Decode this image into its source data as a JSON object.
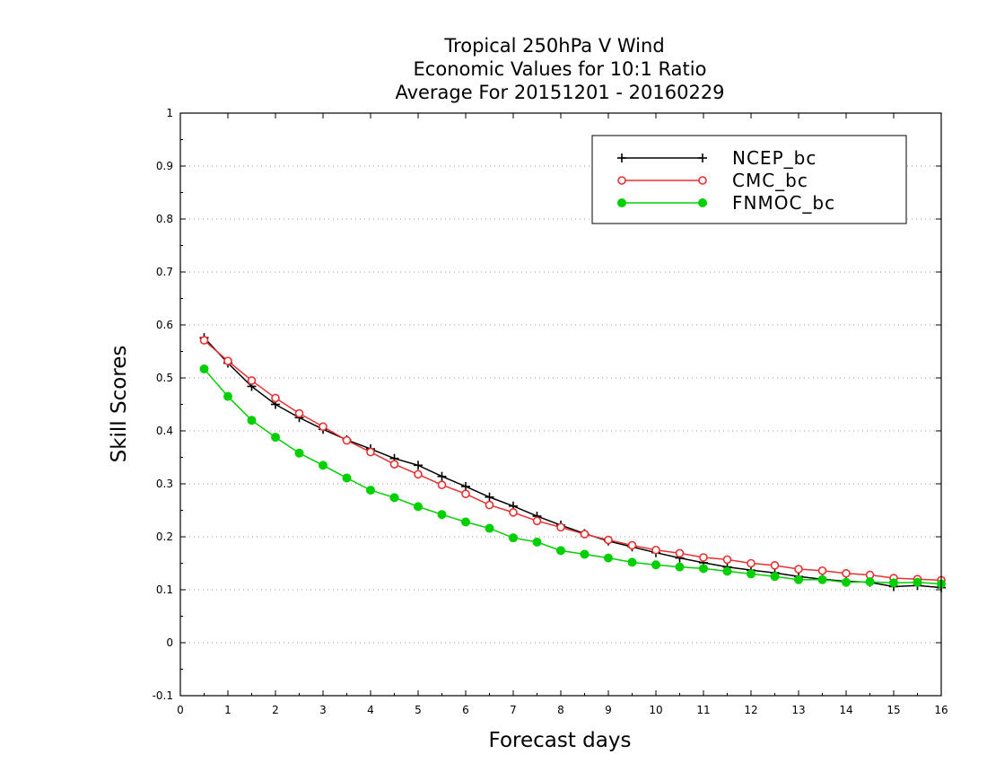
{
  "chart_data": {
    "type": "line",
    "title_lines": [
      "Tropical 250hPa V Wind",
      "Economic Values for 10:1 Ratio",
      "Average For 20151201 - 20160229"
    ],
    "xlabel": "Forecast days",
    "ylabel": "Skill Scores",
    "xlim": [
      0,
      16
    ],
    "ylim": [
      -0.1,
      1
    ],
    "x_ticks": [
      0,
      1,
      2,
      3,
      4,
      5,
      6,
      7,
      8,
      9,
      10,
      11,
      12,
      13,
      14,
      15,
      16
    ],
    "x_tick_labels": [
      "0",
      "1",
      "2",
      "3",
      "4",
      "5",
      "6",
      "7",
      "8",
      "9",
      "10",
      "11",
      "12",
      "13",
      "14",
      "15",
      "16"
    ],
    "y_ticks": [
      -0.1,
      0,
      0.1,
      0.2,
      0.3,
      0.4,
      0.5,
      0.6,
      0.7,
      0.8,
      0.9,
      1
    ],
    "y_tick_labels": [
      "-0.1",
      "0",
      "0.1",
      "0.2",
      "0.3",
      "0.4",
      "0.5",
      "0.6",
      "0.7",
      "0.8",
      "0.9",
      "1"
    ],
    "grid": "horizontal dotted",
    "legend_position": "top-right",
    "x": [
      0.5,
      1,
      1.5,
      2,
      2.5,
      3,
      3.5,
      4,
      4.5,
      5,
      5.5,
      6,
      6.5,
      7,
      7.5,
      8,
      8.5,
      9,
      9.5,
      10,
      10.5,
      11,
      11.5,
      12,
      12.5,
      13,
      13.5,
      14,
      14.5,
      15,
      15.5,
      16
    ],
    "series": [
      {
        "name": "NCEP_bc",
        "color": "#000000",
        "marker": "plus",
        "values": [
          0.576,
          0.528,
          0.484,
          0.45,
          0.425,
          0.403,
          0.383,
          0.366,
          0.348,
          0.335,
          0.314,
          0.295,
          0.275,
          0.258,
          0.239,
          0.222,
          0.206,
          0.192,
          0.181,
          0.17,
          0.16,
          0.151,
          0.143,
          0.137,
          0.132,
          0.125,
          0.12,
          0.116,
          0.114,
          0.106,
          0.108,
          0.104
        ]
      },
      {
        "name": "CMC_bc",
        "color": "#e83030",
        "marker": "open-circle",
        "values": [
          0.571,
          0.532,
          0.495,
          0.462,
          0.433,
          0.408,
          0.382,
          0.36,
          0.337,
          0.318,
          0.298,
          0.281,
          0.26,
          0.246,
          0.23,
          0.218,
          0.205,
          0.194,
          0.184,
          0.175,
          0.169,
          0.161,
          0.157,
          0.15,
          0.146,
          0.139,
          0.136,
          0.131,
          0.128,
          0.122,
          0.12,
          0.118
        ]
      },
      {
        "name": "FNMOC_bc",
        "color": "#00d000",
        "marker": "filled-circle",
        "values": [
          0.517,
          0.465,
          0.42,
          0.388,
          0.358,
          0.335,
          0.311,
          0.288,
          0.274,
          0.257,
          0.242,
          0.228,
          0.216,
          0.198,
          0.19,
          0.174,
          0.167,
          0.16,
          0.152,
          0.147,
          0.143,
          0.14,
          0.135,
          0.13,
          0.125,
          0.119,
          0.119,
          0.114,
          0.115,
          0.113,
          0.114,
          0.111
        ]
      }
    ]
  }
}
